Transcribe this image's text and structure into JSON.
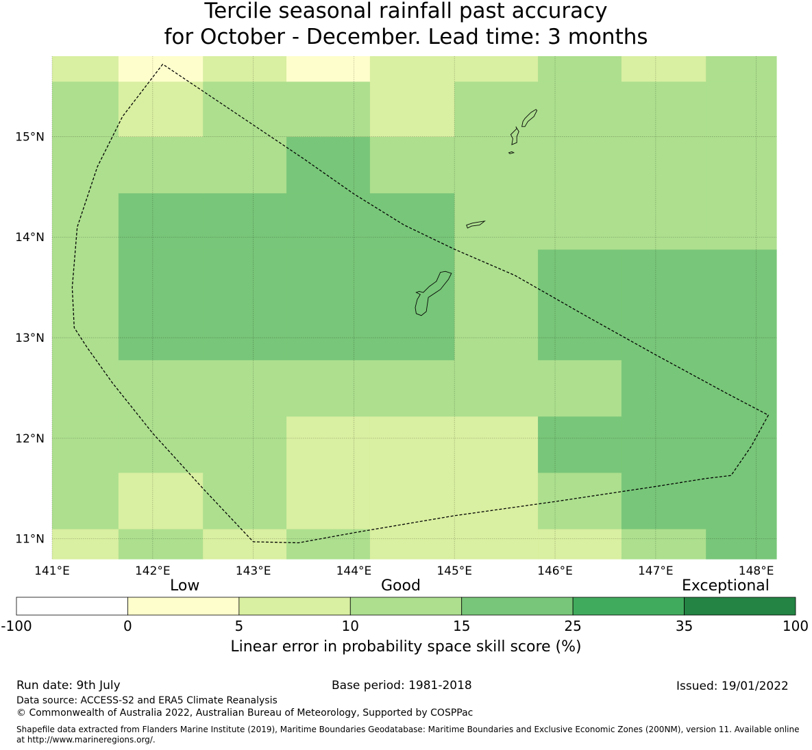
{
  "title": {
    "line1": "Tercile seasonal rainfall past accuracy",
    "line2": "for October - December. Lead time: 3 months"
  },
  "map": {
    "lon_range": [
      141.0,
      148.2
    ],
    "lat_range": [
      10.8,
      15.8
    ],
    "lon_ticks": [
      {
        "value": 141,
        "label": "141°E"
      },
      {
        "value": 142,
        "label": "142°E"
      },
      {
        "value": 143,
        "label": "143°E"
      },
      {
        "value": 144,
        "label": "144°E"
      },
      {
        "value": 145,
        "label": "145°E"
      },
      {
        "value": 146,
        "label": "146°E"
      },
      {
        "value": 147,
        "label": "147°E"
      },
      {
        "value": 148,
        "label": "148°E"
      }
    ],
    "lat_ticks": [
      {
        "value": 11,
        "label": "11°N"
      },
      {
        "value": 12,
        "label": "12°N"
      },
      {
        "value": 13,
        "label": "13°N"
      },
      {
        "value": 14,
        "label": "14°N"
      },
      {
        "value": 15,
        "label": "15°N"
      }
    ],
    "grid_lines": true,
    "grid": {
      "lon_edges": [
        141.0,
        141.66,
        142.5,
        143.33,
        144.16,
        145.0,
        145.83,
        146.66,
        147.5,
        148.2
      ],
      "lat_edges": [
        10.8,
        11.1,
        11.66,
        12.22,
        12.78,
        13.88,
        14.44,
        15.0,
        15.55,
        15.8
      ],
      "classes": [
        [
          2,
          3,
          2,
          3,
          2,
          2,
          2,
          3,
          4
        ],
        [
          3,
          2,
          3,
          2,
          2,
          2,
          3,
          4,
          4
        ],
        [
          3,
          3,
          3,
          2,
          2,
          2,
          4,
          4,
          4
        ],
        [
          3,
          3,
          3,
          3,
          3,
          3,
          3,
          4,
          4
        ],
        [
          3,
          4,
          4,
          4,
          4,
          3,
          4,
          4,
          4
        ],
        [
          3,
          4,
          4,
          4,
          4,
          3,
          3,
          3,
          3
        ],
        [
          3,
          3,
          3,
          4,
          3,
          3,
          3,
          3,
          3
        ],
        [
          3,
          2,
          3,
          3,
          2,
          3,
          3,
          3,
          3
        ],
        [
          2,
          1,
          2,
          1,
          2,
          2,
          3,
          2,
          3
        ]
      ]
    },
    "eez_boundary": [
      [
        142.1,
        15.72
      ],
      [
        141.7,
        15.2
      ],
      [
        141.45,
        14.7
      ],
      [
        141.25,
        14.1
      ],
      [
        141.2,
        13.5
      ],
      [
        141.22,
        13.1
      ],
      [
        141.35,
        12.9
      ],
      [
        141.6,
        12.55
      ],
      [
        142.0,
        12.05
      ],
      [
        142.5,
        11.5
      ],
      [
        143.0,
        10.97
      ],
      [
        143.45,
        10.96
      ],
      [
        144.0,
        11.06
      ],
      [
        145.0,
        11.23
      ],
      [
        146.0,
        11.37
      ],
      [
        147.0,
        11.52
      ],
      [
        147.5,
        11.6
      ],
      [
        147.75,
        11.63
      ],
      [
        147.95,
        11.92
      ],
      [
        148.12,
        12.23
      ],
      [
        147.7,
        12.45
      ],
      [
        147.0,
        12.83
      ],
      [
        146.3,
        13.22
      ],
      [
        145.6,
        13.62
      ],
      [
        145.0,
        13.88
      ],
      [
        144.5,
        14.12
      ],
      [
        144.0,
        14.43
      ],
      [
        143.5,
        14.78
      ],
      [
        142.1,
        15.72
      ]
    ],
    "islands": [
      [
        [
          144.62,
          13.24
        ],
        [
          144.67,
          13.22
        ],
        [
          144.72,
          13.26
        ],
        [
          144.74,
          13.4
        ],
        [
          144.86,
          13.48
        ],
        [
          144.94,
          13.58
        ],
        [
          144.97,
          13.64
        ],
        [
          144.91,
          13.66
        ],
        [
          144.86,
          13.65
        ],
        [
          144.82,
          13.56
        ],
        [
          144.75,
          13.51
        ],
        [
          144.69,
          13.45
        ],
        [
          144.65,
          13.46
        ],
        [
          144.62,
          13.45
        ],
        [
          144.66,
          13.43
        ],
        [
          144.63,
          13.38
        ],
        [
          144.61,
          13.3
        ]
      ],
      [
        [
          145.12,
          14.12
        ],
        [
          145.18,
          14.14
        ],
        [
          145.24,
          14.15
        ],
        [
          145.3,
          14.16
        ],
        [
          145.25,
          14.12
        ],
        [
          145.17,
          14.11
        ],
        [
          145.13,
          14.09
        ]
      ],
      [
        [
          145.57,
          14.92
        ],
        [
          145.62,
          14.94
        ],
        [
          145.62,
          15.0
        ],
        [
          145.64,
          15.05
        ],
        [
          145.61,
          15.1
        ],
        [
          145.62,
          15.08
        ],
        [
          145.56,
          15.02
        ],
        [
          145.58,
          14.98
        ]
      ],
      [
        [
          145.67,
          15.1
        ],
        [
          145.7,
          15.1
        ],
        [
          145.73,
          15.15
        ],
        [
          145.79,
          15.2
        ],
        [
          145.82,
          15.26
        ],
        [
          145.81,
          15.27
        ],
        [
          145.76,
          15.24
        ],
        [
          145.72,
          15.2
        ],
        [
          145.7,
          15.18
        ],
        [
          145.68,
          15.15
        ]
      ],
      [
        [
          145.55,
          14.83
        ],
        [
          145.59,
          14.84
        ],
        [
          145.57,
          14.85
        ],
        [
          145.54,
          14.84
        ]
      ]
    ]
  },
  "colorbar": {
    "categories": {
      "low": "Low",
      "good": "Good",
      "exceptional": "Exceptional"
    },
    "tick_labels": [
      "-100",
      "0",
      "5",
      "10",
      "15",
      "25",
      "35",
      "100"
    ],
    "colors": [
      "#ffffff",
      "#fefecc",
      "#d9efa1",
      "#addf8e",
      "#78c679",
      "#41ab5d",
      "#238443"
    ],
    "label": "Linear error in probability space skill score (%)"
  },
  "footer": {
    "run_date": "Run date: 9th July",
    "base_period": "Base period: 1981-2018",
    "issued": "Issued: 19/01/2022",
    "data_source": "Data source: ACCESS-S2 and ERA5 Climate Reanalysis",
    "copyright": "© Commonwealth of Australia 2022, Australian Bureau of Meteorology, Supported by COSPPac",
    "shapefile_note": "Shapefile data extracted from Flanders Marine Institute (2019), Maritime Boundaries Geodatabase: Maritime Boundaries and Exclusive Economic Zones (200NM), version 11. Available online at http://www.marineregions.org/."
  }
}
